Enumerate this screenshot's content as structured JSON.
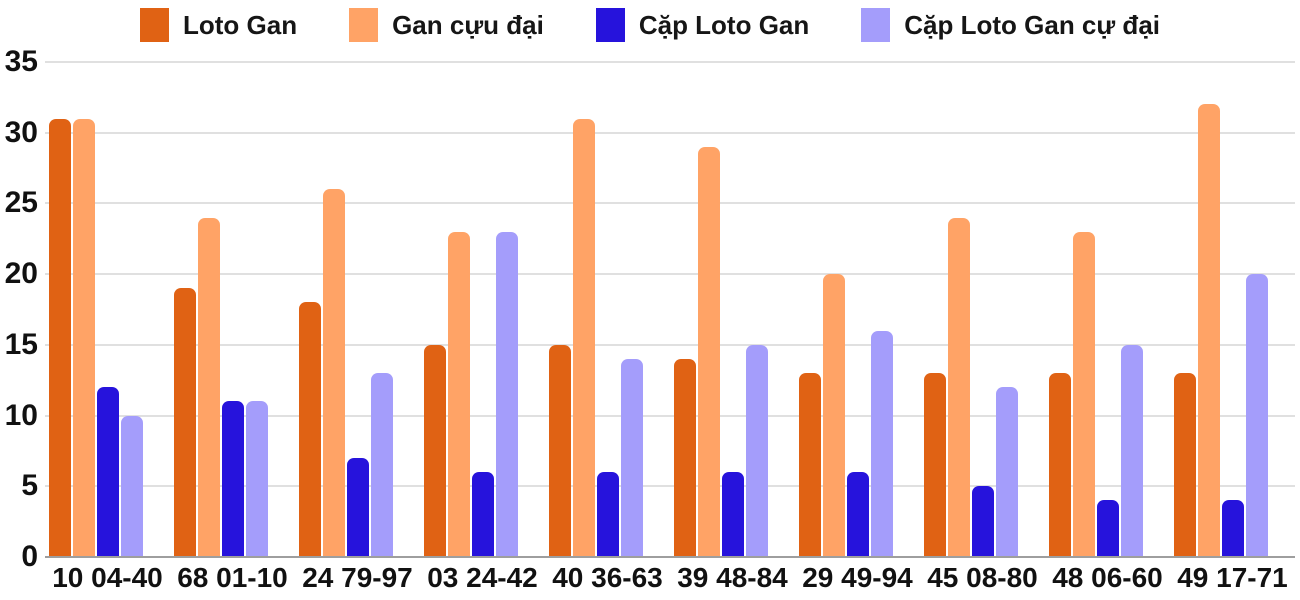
{
  "chart_data": {
    "type": "bar",
    "title": "",
    "xlabel": "",
    "ylabel": "",
    "categories": [
      "10 04-40",
      "68 01-10",
      "24 79-97",
      "03 24-42",
      "40 36-63",
      "39 48-84",
      "29 49-94",
      "45 08-80",
      "48 06-60",
      "49 17-71"
    ],
    "series": [
      {
        "name": "Loto Gan",
        "color": "#e06214",
        "values": [
          31,
          19,
          18,
          15,
          15,
          14,
          13,
          13,
          13,
          13
        ]
      },
      {
        "name": "Gan cựu đại",
        "color": "#ffa366",
        "values": [
          31,
          24,
          26,
          23,
          31,
          29,
          20,
          24,
          23,
          32
        ]
      },
      {
        "name": "Cặp Loto Gan",
        "color": "#2613dc",
        "values": [
          12,
          11,
          7,
          6,
          6,
          6,
          6,
          5,
          4,
          4
        ]
      },
      {
        "name": "Cặp Loto Gan cự đại",
        "color": "#a49dfb",
        "values": [
          10,
          11,
          13,
          23,
          14,
          15,
          16,
          12,
          15,
          20
        ]
      }
    ],
    "ylim": [
      0,
      35
    ],
    "yticks": [
      0,
      5,
      10,
      15,
      20,
      25,
      30,
      35
    ],
    "grid": true,
    "legend_position": "top"
  },
  "colors": {
    "background": "#ffffff",
    "gridline": "#e0e0e0",
    "baseline": "#9e9e9e",
    "text": "#111111"
  }
}
